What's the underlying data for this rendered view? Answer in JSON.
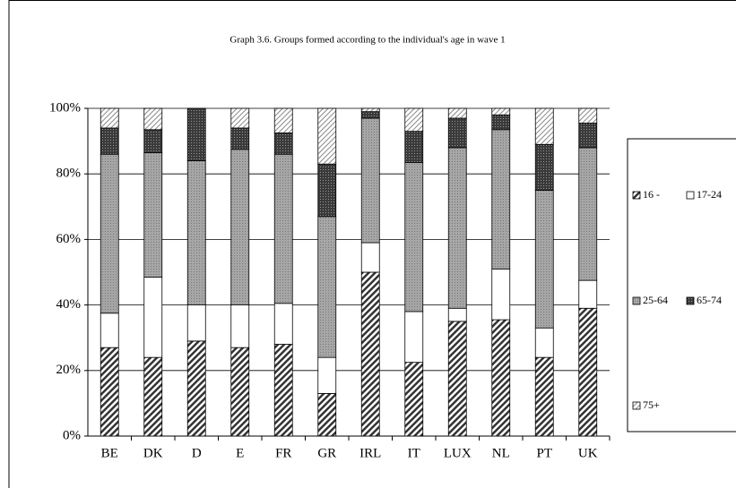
{
  "chart_data": {
    "type": "stacked_bar_100",
    "title": "Graph 3.6. Groups formed according to the individual's age in wave 1",
    "categories": [
      "BE",
      "DK",
      "D",
      "E",
      "FR",
      "GR",
      "IRL",
      "IT",
      "LUX",
      "NL",
      "PT",
      "UK"
    ],
    "series": [
      {
        "name": "16 -",
        "color": "#ffffff",
        "values": [
          27,
          24,
          29,
          27,
          28,
          13,
          50,
          22.5,
          35,
          35.5,
          24,
          39
        ]
      },
      {
        "name": "17-24",
        "color": "#ffffff",
        "values": [
          10.5,
          24.5,
          11,
          13,
          12.5,
          11,
          9,
          15.5,
          4,
          15.5,
          9,
          8.5
        ]
      },
      {
        "name": "25-64",
        "color": "#a6a6a6",
        "values": [
          48.5,
          38,
          44,
          47.5,
          45.5,
          43,
          38,
          45.5,
          49,
          42.5,
          42,
          40.5
        ]
      },
      {
        "name": "65-74",
        "color": "#3a3a3a",
        "values": [
          8,
          7,
          16,
          6.5,
          6.5,
          16,
          2,
          9.5,
          9,
          4.5,
          14,
          7.5
        ]
      },
      {
        "name": "75+",
        "color": "#e8e8e8",
        "values": [
          6,
          6.5,
          0,
          6,
          7.5,
          17,
          1,
          7,
          3,
          2,
          11,
          4.5
        ]
      }
    ],
    "ylim": [
      0,
      100
    ],
    "yticks": [
      {
        "value": 0,
        "label": "0%"
      },
      {
        "value": 20,
        "label": "20%"
      },
      {
        "value": 40,
        "label": "40%"
      },
      {
        "value": 60,
        "label": "60%"
      },
      {
        "value": 80,
        "label": "80%"
      },
      {
        "value": 100,
        "label": "100%"
      }
    ],
    "grid": true
  }
}
